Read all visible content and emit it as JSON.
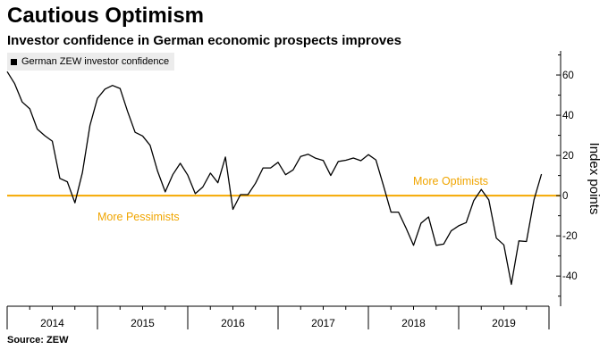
{
  "title": "Cautious Optimism",
  "subtitle": "Investor confidence in German economic prospects improves",
  "source": "Source: ZEW",
  "chart_data": {
    "type": "line",
    "legend": [
      "German ZEW investor confidence"
    ],
    "ylabel": "Index points",
    "ylim": [
      -55,
      72
    ],
    "yticks": [
      60,
      40,
      20,
      0,
      -20,
      -40
    ],
    "years": [
      "2014",
      "2015",
      "2016",
      "2017",
      "2018",
      "2019"
    ],
    "reference_value": 0,
    "annotations": [
      "More Optimists",
      "More Pessimists"
    ],
    "colors": {
      "series": "#000000",
      "reference": "#f5a800",
      "annotation": "#f0a500",
      "legend_bg": "#ececec"
    },
    "series": [
      {
        "name": "German ZEW investor confidence",
        "start": "2014-01",
        "values": [
          61.7,
          55.7,
          46.6,
          43.2,
          33.1,
          29.8,
          27.1,
          8.6,
          6.9,
          -3.6,
          11.5,
          34.9,
          48.4,
          53.0,
          54.8,
          53.3,
          41.9,
          31.5,
          29.7,
          25.0,
          12.1,
          1.9,
          10.4,
          16.1,
          10.2,
          1.0,
          4.3,
          11.2,
          6.4,
          19.2,
          -6.8,
          0.5,
          0.5,
          6.2,
          13.8,
          13.8,
          16.6,
          10.4,
          12.8,
          19.5,
          20.6,
          18.6,
          17.5,
          10.0,
          17.0,
          17.6,
          18.7,
          17.4,
          20.4,
          17.8,
          5.1,
          -8.2,
          -8.2,
          -16.1,
          -24.7,
          -13.7,
          -10.6,
          -24.7,
          -24.1,
          -17.5,
          -15.0,
          -13.4,
          -2.5,
          3.1,
          -2.1,
          -21.1,
          -24.5,
          -44.1,
          -22.5,
          -22.8,
          -2.1,
          10.7
        ]
      }
    ]
  }
}
